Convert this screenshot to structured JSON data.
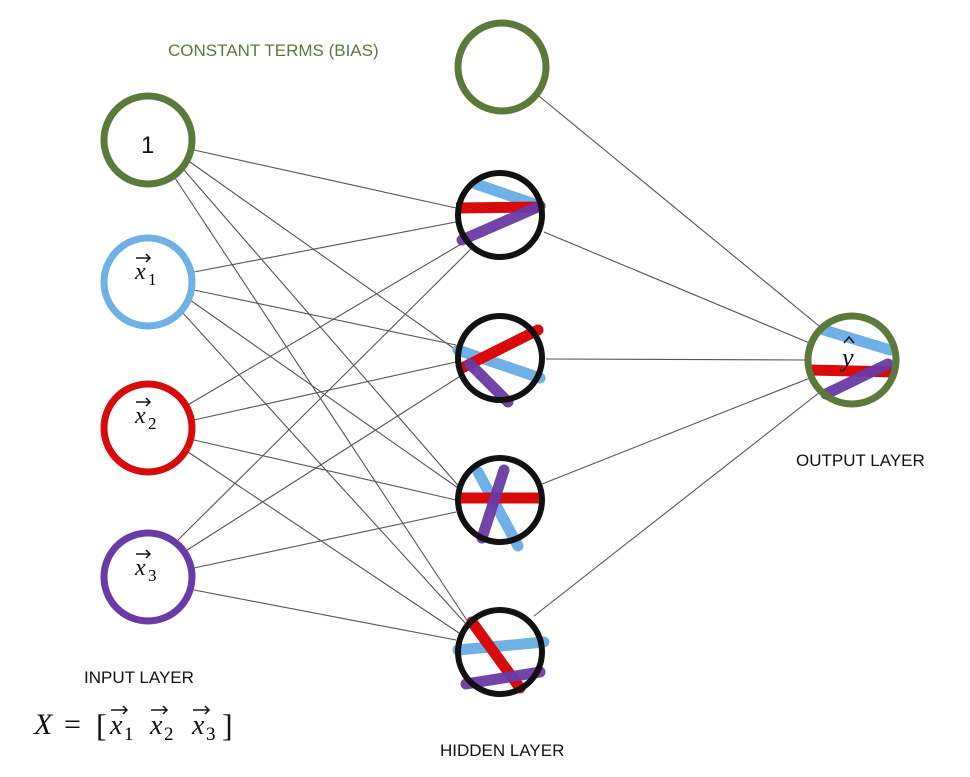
{
  "labels": {
    "bias": "CONSTANT TERMS (BIAS)",
    "input": "INPUT LAYER",
    "hidden": "HIDDEN LAYER",
    "output": "OUTPUT LAYER"
  },
  "nodes": {
    "input_bias": "1",
    "x1": {
      "base": "x",
      "sub": "1"
    },
    "x2": {
      "base": "x",
      "sub": "2"
    },
    "x3": {
      "base": "x",
      "sub": "3"
    },
    "y_hat": "y"
  },
  "equation": {
    "lhs": "X",
    "eq": "=",
    "open": "[",
    "base": "x",
    "subs": [
      "1",
      "2",
      "3"
    ],
    "close": "]"
  },
  "colors": {
    "bias_green": "#5b7a3a",
    "x1_blue": "#6fb0e6",
    "x2_red": "#d90a0a",
    "x3_purple": "#6a3aa6",
    "hidden_black": "#111111",
    "edge_gray": "#555555"
  }
}
